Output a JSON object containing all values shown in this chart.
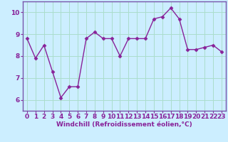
{
  "x": [
    0,
    1,
    2,
    3,
    4,
    5,
    6,
    7,
    8,
    9,
    10,
    11,
    12,
    13,
    14,
    15,
    16,
    17,
    18,
    19,
    20,
    21,
    22,
    23
  ],
  "y": [
    8.8,
    7.9,
    8.5,
    7.3,
    6.1,
    6.6,
    6.6,
    8.8,
    9.1,
    8.8,
    8.8,
    8.0,
    8.8,
    8.8,
    8.8,
    9.7,
    9.8,
    10.2,
    9.7,
    8.3,
    8.3,
    8.4,
    8.5,
    8.2
  ],
  "line_color": "#882299",
  "marker": "D",
  "marker_size": 2.5,
  "bg_color": "#cceeff",
  "grid_color": "#aaddcc",
  "spine_color": "#7755aa",
  "xlabel": "Windchill (Refroidissement éolien,°C)",
  "ylim": [
    5.5,
    10.5
  ],
  "xlim": [
    -0.5,
    23.5
  ],
  "xticks": [
    0,
    1,
    2,
    3,
    4,
    5,
    6,
    7,
    8,
    9,
    10,
    11,
    12,
    13,
    14,
    15,
    16,
    17,
    18,
    19,
    20,
    21,
    22,
    23
  ],
  "yticks": [
    6,
    7,
    8,
    9,
    10
  ],
  "xlabel_fontsize": 6.5,
  "tick_fontsize": 6.5,
  "line_width": 1.0
}
